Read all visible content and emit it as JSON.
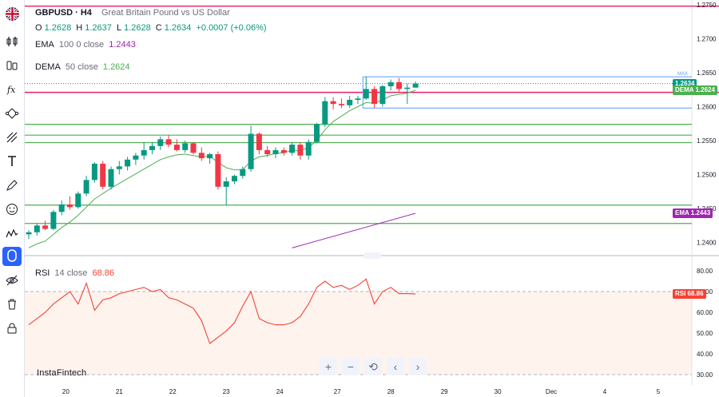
{
  "header": {
    "symbol": "GBPUSD · H4",
    "description": "Great Britain Pound vs US Dollar",
    "ohlc": {
      "o_label": "O",
      "o": "1.2628",
      "h_label": "H",
      "h": "1.2637",
      "l_label": "L",
      "l": "1.2628",
      "c_label": "C",
      "c": "1.2634",
      "change": "+0.0007 (+0.06%)"
    }
  },
  "indicators": {
    "ema": {
      "name": "EMA",
      "params": "100 0 close",
      "value": "1.2443",
      "color": "#9c27b0"
    },
    "dema": {
      "name": "DEMA",
      "params": "50 close",
      "value": "1.2624",
      "color": "#4caf50"
    },
    "rsi": {
      "name": "RSI",
      "params": "14 close",
      "value": "68.86",
      "color": "#f44336"
    }
  },
  "price_axis": {
    "labels": [
      "1.2750",
      "1.2700",
      "1.2650",
      "1.2600",
      "1.2550",
      "1.2500",
      "1.2450",
      "1.2400"
    ],
    "values": [
      1.275,
      1.27,
      1.265,
      1.26,
      1.255,
      1.25,
      1.245,
      1.24
    ],
    "tags": [
      {
        "label": "1.2634",
        "value": 1.2634,
        "color": "#089981"
      },
      {
        "label": "DEMA  1.2624",
        "value": 1.2624,
        "color": "#4caf50"
      },
      {
        "label": "EMA  1.2443",
        "value": 1.2443,
        "color": "#9c27b0"
      }
    ],
    "max_label": "MAX"
  },
  "rsi_axis": {
    "labels": [
      "80.00",
      "70.00",
      "60.00",
      "50.00",
      "40.00",
      "30.00"
    ],
    "values": [
      80,
      70,
      60,
      50,
      40,
      30
    ],
    "tag": {
      "label": "RSI  68.86",
      "value": 68.86
    }
  },
  "time_axis": {
    "labels": [
      "20",
      "21",
      "22",
      "23",
      "24",
      "27",
      "28",
      "29",
      "30",
      "Dec",
      "4",
      "5"
    ]
  },
  "nav_buttons": {
    "zoom_in": "+",
    "zoom_out": "−",
    "reset": "⟲",
    "scroll_left": "‹",
    "scroll_right": "›"
  },
  "brand": "InstaFintech",
  "chart_data": {
    "type": "candlestick",
    "candles": [
      [
        1.2412,
        1.2418,
        1.2405,
        1.2415
      ],
      [
        1.2415,
        1.2428,
        1.241,
        1.2425
      ],
      [
        1.2425,
        1.2432,
        1.2418,
        1.242
      ],
      [
        1.242,
        1.2448,
        1.2418,
        1.2445
      ],
      [
        1.2445,
        1.2462,
        1.244,
        1.2456
      ],
      [
        1.2456,
        1.2468,
        1.2448,
        1.2452
      ],
      [
        1.2452,
        1.2475,
        1.245,
        1.2472
      ],
      [
        1.2472,
        1.2498,
        1.2468,
        1.2492
      ],
      [
        1.2492,
        1.2518,
        1.2488,
        1.2516
      ],
      [
        1.2516,
        1.252,
        1.2478,
        1.2482
      ],
      [
        1.2482,
        1.2512,
        1.2478,
        1.2508
      ],
      [
        1.2508,
        1.252,
        1.25,
        1.2512
      ],
      [
        1.2512,
        1.2526,
        1.2506,
        1.2522
      ],
      [
        1.2522,
        1.2532,
        1.2514,
        1.2528
      ],
      [
        1.2528,
        1.2548,
        1.2522,
        1.2536
      ],
      [
        1.2536,
        1.2548,
        1.253,
        1.2542
      ],
      [
        1.2542,
        1.2556,
        1.2536,
        1.2552
      ],
      [
        1.2552,
        1.2558,
        1.254,
        1.2544
      ],
      [
        1.2544,
        1.2552,
        1.2534,
        1.2536
      ],
      [
        1.2536,
        1.255,
        1.2532,
        1.2546
      ],
      [
        1.2546,
        1.2548,
        1.253,
        1.2532
      ],
      [
        1.2532,
        1.254,
        1.252,
        1.2524
      ],
      [
        1.2524,
        1.2532,
        1.2516,
        1.253
      ],
      [
        1.253,
        1.2534,
        1.2478,
        1.2482
      ],
      [
        1.2482,
        1.2496,
        1.2455,
        1.249
      ],
      [
        1.249,
        1.25,
        1.2486,
        1.2498
      ],
      [
        1.2498,
        1.2512,
        1.2494,
        1.2508
      ],
      [
        1.2508,
        1.2572,
        1.2504,
        1.256
      ],
      [
        1.256,
        1.2562,
        1.253,
        1.2536
      ],
      [
        1.2536,
        1.2542,
        1.2526,
        1.253
      ],
      [
        1.253,
        1.254,
        1.2524,
        1.2536
      ],
      [
        1.2536,
        1.254,
        1.2528,
        1.2532
      ],
      [
        1.2532,
        1.2548,
        1.2528,
        1.2544
      ],
      [
        1.2544,
        1.2548,
        1.2522,
        1.2528
      ],
      [
        1.2528,
        1.2552,
        1.2522,
        1.2548
      ],
      [
        1.2548,
        1.2576,
        1.2546,
        1.2574
      ],
      [
        1.2574,
        1.2614,
        1.257,
        1.2608
      ],
      [
        1.2608,
        1.2614,
        1.2596,
        1.2604
      ],
      [
        1.2604,
        1.2612,
        1.2598,
        1.2602
      ],
      [
        1.2602,
        1.2616,
        1.2598,
        1.261
      ],
      [
        1.261,
        1.2616,
        1.2604,
        1.2612
      ],
      [
        1.2612,
        1.2644,
        1.261,
        1.2626
      ],
      [
        1.2626,
        1.263,
        1.2598,
        1.2604
      ],
      [
        1.2604,
        1.2632,
        1.26,
        1.263
      ],
      [
        1.263,
        1.264,
        1.2624,
        1.2636
      ],
      [
        1.2636,
        1.2642,
        1.2622,
        1.2626
      ],
      [
        1.2626,
        1.2634,
        1.2604,
        1.2628
      ],
      [
        1.2628,
        1.2637,
        1.2628,
        1.2634
      ]
    ],
    "dema": [
      1.2392,
      1.2398,
      1.2402,
      1.2412,
      1.2422,
      1.243,
      1.244,
      1.2452,
      1.2464,
      1.2472,
      1.248,
      1.2487,
      1.2494,
      1.2501,
      1.2508,
      1.2515,
      1.2522,
      1.2526,
      1.2529,
      1.253,
      1.2528,
      1.2526,
      1.2527,
      1.2518,
      1.251,
      1.2507,
      1.2507,
      1.252,
      1.2526,
      1.2528,
      1.2531,
      1.2532,
      1.2536,
      1.2535,
      1.254,
      1.255,
      1.2566,
      1.2578,
      1.2586,
      1.2594,
      1.26,
      1.2606,
      1.2605,
      1.261,
      1.2616,
      1.2618,
      1.262,
      1.2624
    ],
    "ema_segment": {
      "from": [
        32,
        1.2392
      ],
      "to": [
        47,
        1.2443
      ]
    },
    "levels": [
      1.2574,
      1.2558,
      1.2547,
      1.2455,
      1.2428
    ],
    "red_levels": [
      1.2748,
      1.2621
    ],
    "rsi": [
      54,
      57,
      60,
      64,
      67,
      70,
      64,
      74,
      61,
      66,
      67,
      69,
      70,
      71,
      72,
      70,
      71,
      67,
      66,
      64,
      62,
      56,
      45,
      48,
      51,
      55,
      63,
      70,
      57,
      55,
      54,
      54,
      55,
      58,
      64,
      72,
      75,
      72,
      73,
      71,
      73,
      76,
      64,
      70,
      72,
      69,
      69,
      68.86
    ],
    "rsi_ylim": [
      25,
      85
    ],
    "ylim": [
      1.2383,
      1.2757
    ]
  }
}
